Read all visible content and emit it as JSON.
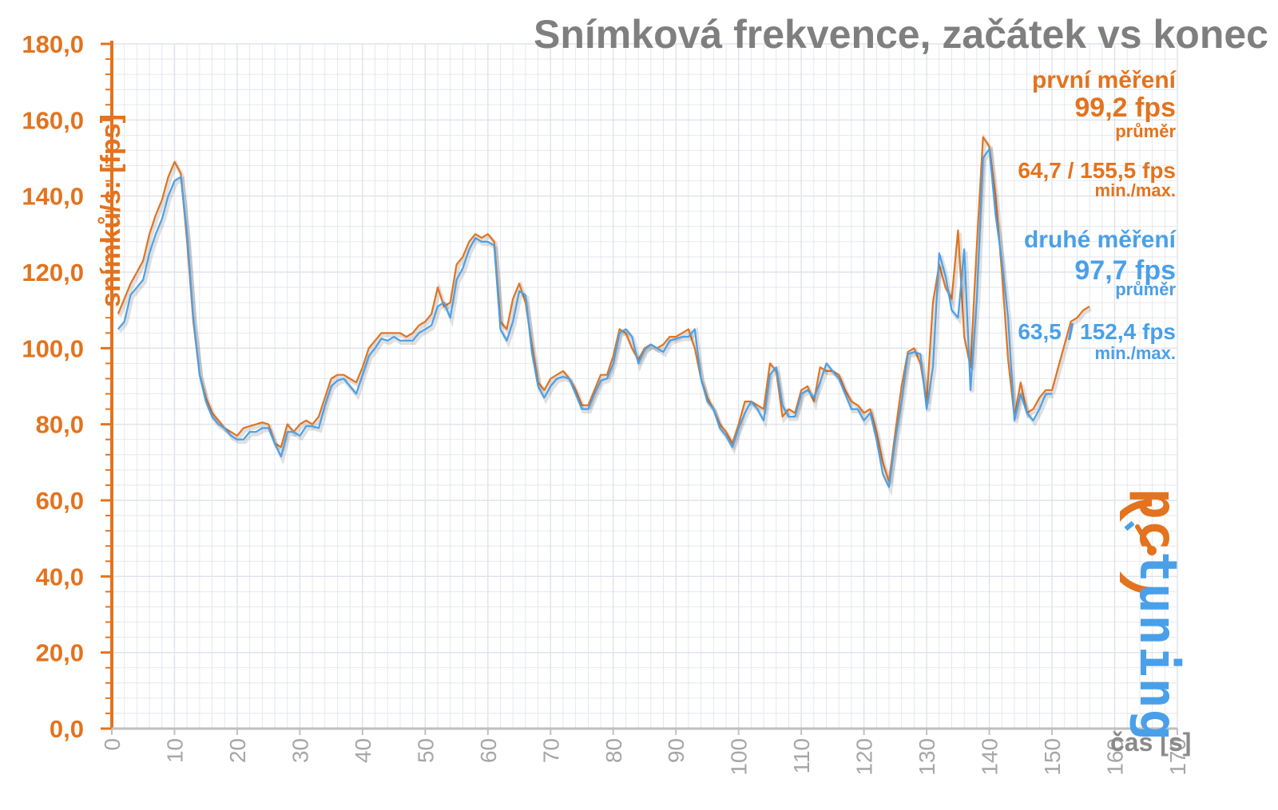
{
  "chart_data": {
    "type": "line",
    "title": "Snímková frekvence, začátek vs konec",
    "xlabel": "čas [s]",
    "ylabel": "snímků/s: [fps]",
    "xlim": [
      0,
      170
    ],
    "ylim": [
      0,
      180
    ],
    "x_ticks": [
      "0",
      "10",
      "20",
      "30",
      "40",
      "50",
      "60",
      "70",
      "80",
      "90",
      "100",
      "110",
      "120",
      "130",
      "140",
      "150",
      "160",
      "170"
    ],
    "y_ticks": [
      "0,0",
      "20,0",
      "40,0",
      "60,0",
      "80,0",
      "100,0",
      "120,0",
      "140,0",
      "160,0",
      "180,0"
    ],
    "grid": true,
    "series": [
      {
        "name": "první měření",
        "color": "#e3731e",
        "points": [
          [
            1,
            109
          ],
          [
            2,
            113
          ],
          [
            3,
            117
          ],
          [
            4,
            120
          ],
          [
            5,
            123
          ],
          [
            6,
            130
          ],
          [
            7,
            135
          ],
          [
            8,
            139
          ],
          [
            9,
            145
          ],
          [
            10,
            149
          ],
          [
            11,
            146
          ],
          [
            12,
            128
          ],
          [
            13,
            107
          ],
          [
            14,
            93
          ],
          [
            15,
            87
          ],
          [
            16,
            83
          ],
          [
            17,
            81
          ],
          [
            18,
            79
          ],
          [
            19,
            78
          ],
          [
            20,
            77
          ],
          [
            21,
            79
          ],
          [
            22,
            79.5
          ],
          [
            23,
            80
          ],
          [
            24,
            80.5
          ],
          [
            25,
            80
          ],
          [
            26,
            75
          ],
          [
            27,
            74
          ],
          [
            28,
            80
          ],
          [
            29,
            78
          ],
          [
            30,
            80
          ],
          [
            31,
            81
          ],
          [
            32,
            80
          ],
          [
            33,
            82
          ],
          [
            34,
            87
          ],
          [
            35,
            92
          ],
          [
            36,
            93
          ],
          [
            37,
            93
          ],
          [
            38,
            92
          ],
          [
            39,
            91
          ],
          [
            40,
            95
          ],
          [
            41,
            100
          ],
          [
            42,
            102
          ],
          [
            43,
            104
          ],
          [
            44,
            104
          ],
          [
            45,
            104
          ],
          [
            46,
            104
          ],
          [
            47,
            103
          ],
          [
            48,
            104
          ],
          [
            49,
            106
          ],
          [
            50,
            107
          ],
          [
            51,
            109
          ],
          [
            52,
            116
          ],
          [
            53,
            111
          ],
          [
            54,
            112
          ],
          [
            55,
            122
          ],
          [
            56,
            124
          ],
          [
            57,
            128
          ],
          [
            58,
            130
          ],
          [
            59,
            129
          ],
          [
            60,
            130
          ],
          [
            61,
            128
          ],
          [
            62,
            107
          ],
          [
            63,
            105
          ],
          [
            64,
            113
          ],
          [
            65,
            117
          ],
          [
            66,
            112
          ],
          [
            67,
            101
          ],
          [
            68,
            91
          ],
          [
            69,
            89
          ],
          [
            70,
            92
          ],
          [
            71,
            93
          ],
          [
            72,
            94
          ],
          [
            73,
            92
          ],
          [
            74,
            89
          ],
          [
            75,
            85
          ],
          [
            76,
            85
          ],
          [
            77,
            89
          ],
          [
            78,
            93
          ],
          [
            79,
            93
          ],
          [
            80,
            98
          ],
          [
            81,
            105
          ],
          [
            82,
            104
          ],
          [
            83,
            100
          ],
          [
            84,
            97
          ],
          [
            85,
            100
          ],
          [
            86,
            101
          ],
          [
            87,
            100
          ],
          [
            88,
            101
          ],
          [
            89,
            103
          ],
          [
            90,
            103
          ],
          [
            91,
            104
          ],
          [
            92,
            105
          ],
          [
            93,
            100
          ],
          [
            94,
            92
          ],
          [
            95,
            87
          ],
          [
            96,
            84
          ],
          [
            97,
            80
          ],
          [
            98,
            78
          ],
          [
            99,
            75
          ],
          [
            100,
            80
          ],
          [
            101,
            86
          ],
          [
            102,
            86
          ],
          [
            103,
            85
          ],
          [
            104,
            84
          ],
          [
            105,
            96
          ],
          [
            106,
            94
          ],
          [
            107,
            82
          ],
          [
            108,
            84
          ],
          [
            109,
            83
          ],
          [
            110,
            89
          ],
          [
            111,
            90
          ],
          [
            112,
            86
          ],
          [
            113,
            95
          ],
          [
            114,
            94
          ],
          [
            115,
            94
          ],
          [
            116,
            93
          ],
          [
            117,
            89
          ],
          [
            118,
            86
          ],
          [
            119,
            85
          ],
          [
            120,
            83
          ],
          [
            121,
            84
          ],
          [
            122,
            78
          ],
          [
            123,
            70
          ],
          [
            124,
            65
          ],
          [
            125,
            78
          ],
          [
            126,
            90
          ],
          [
            127,
            99
          ],
          [
            128,
            100
          ],
          [
            129,
            96
          ],
          [
            130,
            86
          ],
          [
            131,
            112
          ],
          [
            132,
            122
          ],
          [
            133,
            116
          ],
          [
            134,
            113
          ],
          [
            135,
            131
          ],
          [
            136,
            103
          ],
          [
            137,
            95
          ],
          [
            138,
            127
          ],
          [
            139,
            155.5
          ],
          [
            140,
            153
          ],
          [
            141,
            140
          ],
          [
            142,
            120
          ],
          [
            143,
            97
          ],
          [
            144,
            82
          ],
          [
            145,
            91
          ],
          [
            146,
            83
          ],
          [
            147,
            84
          ],
          [
            148,
            87
          ],
          [
            149,
            89
          ],
          [
            150,
            89
          ],
          [
            151,
            95
          ],
          [
            152,
            101
          ],
          [
            153,
            107
          ],
          [
            154,
            108
          ],
          [
            155,
            110
          ],
          [
            156,
            111
          ]
        ]
      },
      {
        "name": "druhé měření",
        "color": "#4aa0e8",
        "points": [
          [
            1,
            105
          ],
          [
            2,
            107
          ],
          [
            3,
            114
          ],
          [
            4,
            116
          ],
          [
            5,
            118
          ],
          [
            6,
            125
          ],
          [
            7,
            130
          ],
          [
            8,
            134
          ],
          [
            9,
            140
          ],
          [
            10,
            144
          ],
          [
            11,
            145
          ],
          [
            12,
            130
          ],
          [
            13,
            108
          ],
          [
            14,
            93
          ],
          [
            15,
            86
          ],
          [
            16,
            82
          ],
          [
            17,
            80
          ],
          [
            18,
            79
          ],
          [
            19,
            77
          ],
          [
            20,
            76
          ],
          [
            21,
            76
          ],
          [
            22,
            78
          ],
          [
            23,
            78
          ],
          [
            24,
            79
          ],
          [
            25,
            79
          ],
          [
            26,
            75
          ],
          [
            27,
            71.5
          ],
          [
            28,
            78
          ],
          [
            29,
            78
          ],
          [
            30,
            77
          ],
          [
            31,
            79.5
          ],
          [
            32,
            79.5
          ],
          [
            33,
            79
          ],
          [
            34,
            85
          ],
          [
            35,
            90
          ],
          [
            36,
            91.5
          ],
          [
            37,
            92
          ],
          [
            38,
            90
          ],
          [
            39,
            88
          ],
          [
            40,
            93
          ],
          [
            41,
            98
          ],
          [
            42,
            100
          ],
          [
            43,
            102.5
          ],
          [
            44,
            102
          ],
          [
            45,
            103
          ],
          [
            46,
            102
          ],
          [
            47,
            102
          ],
          [
            48,
            102
          ],
          [
            49,
            104
          ],
          [
            50,
            105
          ],
          [
            51,
            106
          ],
          [
            52,
            111
          ],
          [
            53,
            112
          ],
          [
            54,
            108
          ],
          [
            55,
            118
          ],
          [
            56,
            121
          ],
          [
            57,
            126
          ],
          [
            58,
            129
          ],
          [
            59,
            128
          ],
          [
            60,
            128
          ],
          [
            61,
            127
          ],
          [
            62,
            105
          ],
          [
            63,
            102
          ],
          [
            64,
            107
          ],
          [
            65,
            115
          ],
          [
            66,
            114
          ],
          [
            67,
            99
          ],
          [
            68,
            90
          ],
          [
            69,
            87
          ],
          [
            70,
            90
          ],
          [
            71,
            92
          ],
          [
            72,
            92.5
          ],
          [
            73,
            92
          ],
          [
            74,
            88
          ],
          [
            75,
            84
          ],
          [
            76,
            84
          ],
          [
            77,
            88
          ],
          [
            78,
            91.5
          ],
          [
            79,
            92
          ],
          [
            80,
            96
          ],
          [
            81,
            104
          ],
          [
            82,
            105
          ],
          [
            83,
            103
          ],
          [
            84,
            96
          ],
          [
            85,
            99.5
          ],
          [
            86,
            101
          ],
          [
            87,
            100
          ],
          [
            88,
            99
          ],
          [
            89,
            102
          ],
          [
            90,
            102.5
          ],
          [
            91,
            103
          ],
          [
            92,
            103
          ],
          [
            93,
            105
          ],
          [
            94,
            92
          ],
          [
            95,
            86
          ],
          [
            96,
            84
          ],
          [
            97,
            79
          ],
          [
            98,
            77
          ],
          [
            99,
            74
          ],
          [
            100,
            79
          ],
          [
            101,
            83
          ],
          [
            102,
            86
          ],
          [
            103,
            84
          ],
          [
            104,
            81
          ],
          [
            105,
            93
          ],
          [
            106,
            95
          ],
          [
            107,
            85
          ],
          [
            108,
            82
          ],
          [
            109,
            82
          ],
          [
            110,
            88
          ],
          [
            111,
            89
          ],
          [
            112,
            87
          ],
          [
            113,
            91
          ],
          [
            114,
            96
          ],
          [
            115,
            94
          ],
          [
            116,
            92
          ],
          [
            117,
            88
          ],
          [
            118,
            84
          ],
          [
            119,
            84
          ],
          [
            120,
            81
          ],
          [
            121,
            83
          ],
          [
            122,
            76
          ],
          [
            123,
            67
          ],
          [
            124,
            63.5
          ],
          [
            125,
            76
          ],
          [
            126,
            86
          ],
          [
            127,
            98.5
          ],
          [
            128,
            99
          ],
          [
            129,
            98.5
          ],
          [
            130,
            84
          ],
          [
            131,
            95
          ],
          [
            132,
            125
          ],
          [
            133,
            119
          ],
          [
            134,
            110
          ],
          [
            135,
            108
          ],
          [
            136,
            126
          ],
          [
            137,
            89
          ],
          [
            138,
            113
          ],
          [
            139,
            150
          ],
          [
            140,
            152.4
          ],
          [
            141,
            135
          ],
          [
            142,
            123
          ],
          [
            143,
            108
          ],
          [
            144,
            81
          ],
          [
            145,
            88
          ],
          [
            146,
            83
          ],
          [
            147,
            81
          ],
          [
            148,
            84
          ],
          [
            149,
            88
          ],
          [
            150,
            88
          ]
        ]
      }
    ]
  },
  "annotations": {
    "first": {
      "name": "první měření",
      "avg": "99,2 fps",
      "avg_label": "průměr",
      "minmax": "64,7 / 155,5 fps",
      "minmax_label": "min./max."
    },
    "second": {
      "name": "druhé měření",
      "avg": "97,7 fps",
      "avg_label": "průměr",
      "minmax": "63,5 / 152,4 fps",
      "minmax_label": "min./max."
    }
  },
  "logo": {
    "text": "pctuning",
    "colors": [
      "#4aa0e8",
      "#e3731e"
    ]
  },
  "colors": {
    "axis": "#e3731e",
    "grid": "#dfe3ea",
    "title": "#7f7f7f"
  }
}
